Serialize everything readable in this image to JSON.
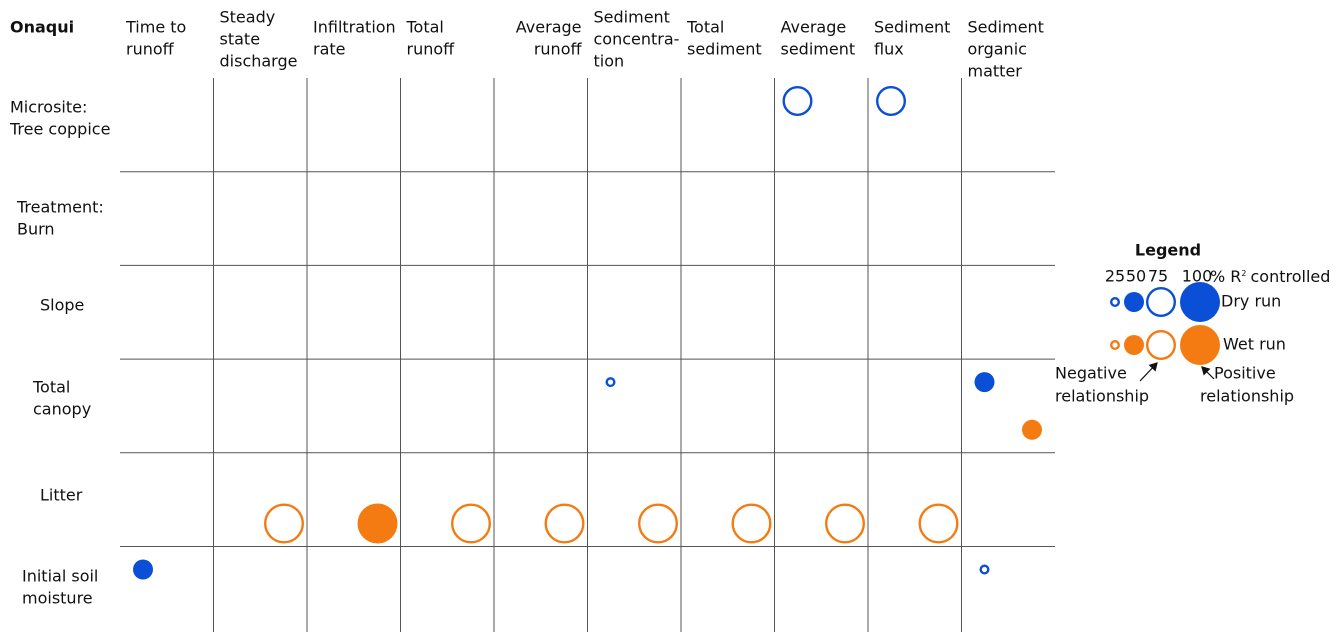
{
  "title": "Onaqui",
  "columns": [
    [
      "Time to",
      "runoff"
    ],
    [
      "Steady",
      "state",
      "discharge"
    ],
    [
      "Infiltration",
      "rate"
    ],
    [
      "Total",
      "runoff"
    ],
    [
      "Average",
      "runoff"
    ],
    [
      "Sediment",
      "concentra-",
      "tion"
    ],
    [
      "Total",
      "sediment"
    ],
    [
      "Average",
      "sediment"
    ],
    [
      "Sediment",
      "flux"
    ],
    [
      "Sediment",
      "organic",
      "matter"
    ]
  ],
  "rows": [
    [
      "Microsite:",
      "Tree coppice"
    ],
    [
      "Treatment:",
      "Burn"
    ],
    [
      "Slope"
    ],
    [
      "Total",
      "canopy"
    ],
    [
      "Litter"
    ],
    [
      "Initial soil",
      "moisture"
    ]
  ],
  "runs": {
    "dry": {
      "name": "Dry run",
      "color": "#0a4fd6"
    },
    "wet": {
      "name": "Wet run",
      "color": "#f47b12"
    }
  },
  "cells": [
    {
      "row": 0,
      "col": 7,
      "run": "dry",
      "r2": 75,
      "relationship": "negative"
    },
    {
      "row": 0,
      "col": 8,
      "run": "dry",
      "r2": 75,
      "relationship": "negative"
    },
    {
      "row": 3,
      "col": 5,
      "run": "dry",
      "r2": 25,
      "relationship": "negative"
    },
    {
      "row": 3,
      "col": 9,
      "run": "dry",
      "r2": 50,
      "relationship": "positive"
    },
    {
      "row": 3,
      "col": 9,
      "run": "wet",
      "r2": 50,
      "relationship": "positive"
    },
    {
      "row": 4,
      "col": 1,
      "run": "wet",
      "r2": 100,
      "relationship": "negative"
    },
    {
      "row": 4,
      "col": 2,
      "run": "wet",
      "r2": 100,
      "relationship": "positive"
    },
    {
      "row": 4,
      "col": 3,
      "run": "wet",
      "r2": 100,
      "relationship": "negative"
    },
    {
      "row": 4,
      "col": 4,
      "run": "wet",
      "r2": 100,
      "relationship": "negative"
    },
    {
      "row": 4,
      "col": 5,
      "run": "wet",
      "r2": 100,
      "relationship": "negative"
    },
    {
      "row": 4,
      "col": 6,
      "run": "wet",
      "r2": 100,
      "relationship": "negative"
    },
    {
      "row": 4,
      "col": 7,
      "run": "wet",
      "r2": 100,
      "relationship": "negative"
    },
    {
      "row": 4,
      "col": 8,
      "run": "wet",
      "r2": 100,
      "relationship": "negative"
    },
    {
      "row": 5,
      "col": 0,
      "run": "dry",
      "r2": 50,
      "relationship": "positive"
    },
    {
      "row": 5,
      "col": 9,
      "run": "dry",
      "r2": 25,
      "relationship": "negative"
    }
  ],
  "legend": {
    "title": "Legend",
    "levels": [
      25,
      50,
      75,
      100
    ],
    "unit": "% R",
    "unit_superscript": "2",
    "unit_suffix": "controlled",
    "negative": [
      "Negative",
      "relationship"
    ],
    "positive": [
      "Positive",
      "relationship"
    ]
  }
}
